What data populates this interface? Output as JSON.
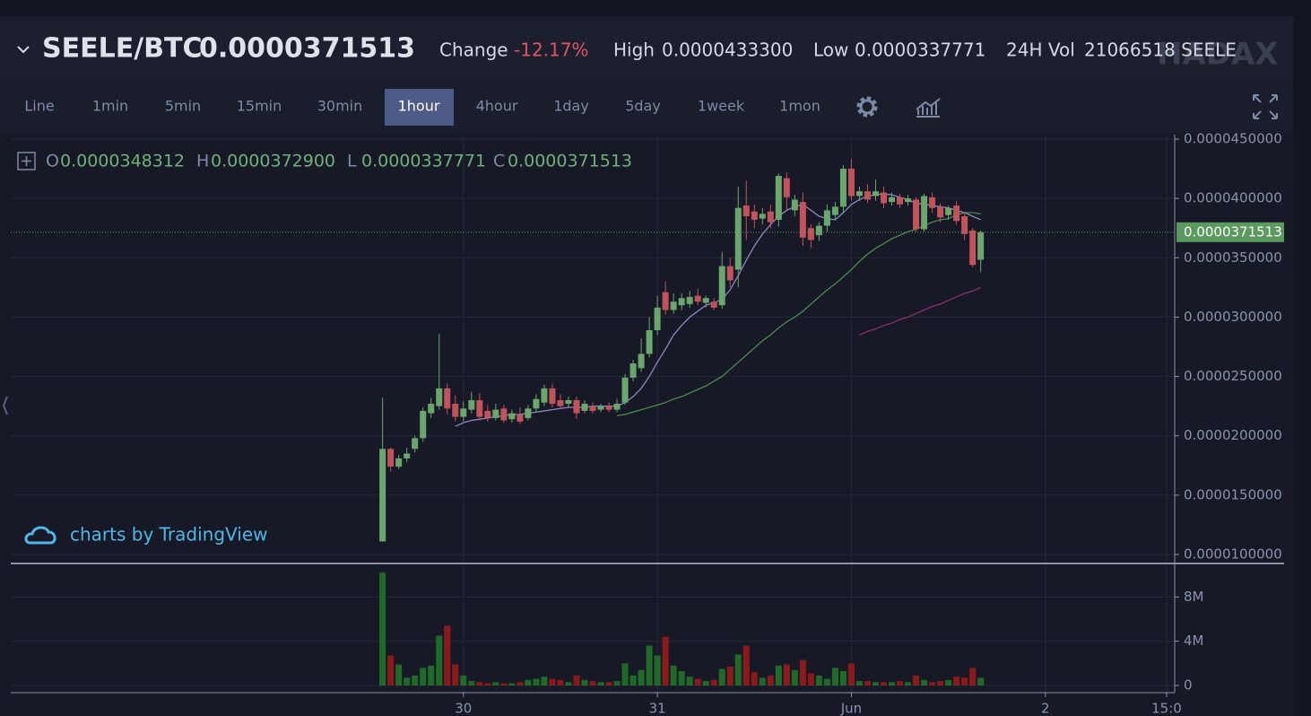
{
  "header": {
    "pair": "SEELE/BTC",
    "price": "0.0000371513",
    "stats": [
      {
        "label": "Change",
        "value": "-12.17%"
      },
      {
        "label": "High",
        "value": "0.0000433300"
      },
      {
        "label": "Low",
        "value": "0.0000337771"
      },
      {
        "label": "24H Vol",
        "value": "21066518 SEELE"
      }
    ],
    "watermark": "HADAX"
  },
  "toolbar": {
    "intervals": [
      "Line",
      "1min",
      "5min",
      "15min",
      "30min",
      "1hour",
      "4hour",
      "1day",
      "5day",
      "1week",
      "1mon"
    ],
    "active": "1hour"
  },
  "legend": {
    "items": [
      {
        "key": "O",
        "value": "0.0000348312"
      },
      {
        "key": "H",
        "value": "0.0000372900"
      },
      {
        "key": "L",
        "value": "0.0000337771"
      },
      {
        "key": "C",
        "value": "0.0000371513"
      }
    ]
  },
  "attribution": "charts by TradingView",
  "chart_data": {
    "type": "candlestick",
    "open": [
      1.11e-05,
      1.89e-05,
      1.74e-05,
      1.81e-05,
      1.89e-05,
      1.98e-05,
      2.19e-05,
      2.25e-05,
      2.4e-05,
      2.27e-05,
      2.16e-05,
      2.22e-05,
      2.3e-05,
      2.21e-05,
      2.15e-05,
      2.23e-05,
      2.14e-05,
      2.18e-05,
      2.15e-05,
      2.23e-05,
      2.28e-05,
      2.4e-05,
      2.3e-05,
      2.27e-05,
      2.3e-05,
      2.21e-05,
      2.25e-05,
      2.22e-05,
      2.25e-05,
      2.22e-05,
      2.28e-05,
      2.49e-05,
      2.57e-05,
      2.69e-05,
      2.89e-05,
      3.21e-05,
      3.06e-05,
      3.1e-05,
      3.11e-05,
      3.18e-05,
      3.12e-05,
      3.13e-05,
      3.1e-05,
      3.43e-05,
      3.4e-05,
      3.94e-05,
      3.89e-05,
      3.83e-05,
      3.89e-05,
      3.82e-05,
      4.17e-05,
      3.9e-05,
      3.97e-05,
      3.75e-05,
      3.69e-05,
      3.77e-05,
      3.86e-05,
      3.93e-05,
      4.25e-05,
      4.02e-05,
      4.06e-05,
      4.02e-05,
      4.05e-05,
      3.97e-05,
      4.01e-05,
      3.97e-05,
      3.99e-05,
      3.74e-05,
      4.01e-05,
      3.93e-05,
      3.86e-05,
      3.94e-05,
      3.85e-05,
      3.73e-05,
      3.48312e-05
    ],
    "high": [
      2.32e-05,
      1.9e-05,
      1.84e-05,
      1.9e-05,
      2e-05,
      2.24e-05,
      2.32e-05,
      2.86e-05,
      2.44e-05,
      2.34e-05,
      2.29e-05,
      2.37e-05,
      2.36e-05,
      2.26e-05,
      2.27e-05,
      2.26e-05,
      2.22e-05,
      2.24e-05,
      2.26e-05,
      2.35e-05,
      2.43e-05,
      2.44e-05,
      2.35e-05,
      2.33e-05,
      2.33e-05,
      2.3e-05,
      2.28e-05,
      2.27e-05,
      2.28e-05,
      2.31e-05,
      2.52e-05,
      2.64e-05,
      2.82e-05,
      3e-05,
      3.18e-05,
      3.3e-05,
      3.2e-05,
      3.2e-05,
      3.22e-05,
      3.24e-05,
      3.18e-05,
      3.16e-05,
      3.55e-05,
      3.5e-05,
      4.1e-05,
      4.15e-05,
      3.95e-05,
      3.92e-05,
      3.95e-05,
      4.21e-05,
      4.22e-05,
      4.03e-05,
      4.05e-05,
      3.78e-05,
      3.8e-05,
      3.95e-05,
      3.97e-05,
      4.28e-05,
      4.333e-05,
      4.1e-05,
      4.12e-05,
      4.16e-05,
      4.1e-05,
      4.05e-05,
      4.04e-05,
      4.03e-05,
      4.01e-05,
      4.04e-05,
      4.05e-05,
      3.96e-05,
      3.94e-05,
      3.98e-05,
      3.88e-05,
      3.75e-05,
      3.729e-05
    ],
    "low": [
      1.11e-05,
      1.7e-05,
      1.72e-05,
      1.78e-05,
      1.86e-05,
      1.95e-05,
      2.15e-05,
      2.22e-05,
      2.18e-05,
      2.12e-05,
      2.12e-05,
      2.19e-05,
      2.13e-05,
      2.12e-05,
      2.13e-05,
      2.11e-05,
      2.11e-05,
      2.1e-05,
      2.13e-05,
      2.2e-05,
      2.25e-05,
      2.24e-05,
      2.23e-05,
      2.24e-05,
      2.14e-05,
      2.19e-05,
      2.19e-05,
      2.2e-05,
      2.2e-05,
      2.2e-05,
      2.26e-05,
      2.46e-05,
      2.54e-05,
      2.66e-05,
      2.85e-05,
      3.02e-05,
      3.03e-05,
      3.06e-05,
      3.08e-05,
      3.1e-05,
      3.08e-05,
      3.06e-05,
      3.07e-05,
      3.25e-05,
      3.25e-05,
      3.65e-05,
      3.75e-05,
      3.78e-05,
      3.75e-05,
      3.76e-05,
      3.9e-05,
      3.85e-05,
      3.6e-05,
      3.58e-05,
      3.64e-05,
      3.72e-05,
      3.82e-05,
      3.88e-05,
      3.98e-05,
      3.98e-05,
      3.96e-05,
      3.98e-05,
      3.92e-05,
      3.94e-05,
      3.92e-05,
      3.94e-05,
      3.72e-05,
      3.72e-05,
      3.88e-05,
      3.8e-05,
      3.82e-05,
      3.78e-05,
      3.65e-05,
      3.42e-05,
      3.37771e-05
    ],
    "close": [
      1.89e-05,
      1.74e-05,
      1.81e-05,
      1.85e-05,
      1.98e-05,
      2.21e-05,
      2.27e-05,
      2.4e-05,
      2.23e-05,
      2.16e-05,
      2.23e-05,
      2.3e-05,
      2.16e-05,
      2.15e-05,
      2.22e-05,
      2.13e-05,
      2.19e-05,
      2.12e-05,
      2.23e-05,
      2.31e-05,
      2.4e-05,
      2.27e-05,
      2.25e-05,
      2.3e-05,
      2.19e-05,
      2.27e-05,
      2.21e-05,
      2.25e-05,
      2.22e-05,
      2.27e-05,
      2.49e-05,
      2.61e-05,
      2.69e-05,
      2.89e-05,
      3.08e-05,
      3.06e-05,
      3.13e-05,
      3.16e-05,
      3.17e-05,
      3.13e-05,
      3.16e-05,
      3.08e-05,
      3.43e-05,
      3.31e-05,
      3.92e-05,
      3.85e-05,
      3.82e-05,
      3.87e-05,
      3.8e-05,
      4.19e-05,
      4.01e-05,
      3.99e-05,
      3.67e-05,
      3.65e-05,
      3.77e-05,
      3.9e-05,
      3.93e-05,
      4.25e-05,
      4.02e-05,
      4.06e-05,
      3.99e-05,
      4.06e-05,
      3.96e-05,
      4.01e-05,
      3.95e-05,
      4e-05,
      3.74e-05,
      4.02e-05,
      3.92e-05,
      3.84e-05,
      3.92e-05,
      3.81e-05,
      3.7e-05,
      3.44e-05,
      3.71513e-05
    ],
    "volume": [
      10200000,
      2700000,
      1900000,
      700000,
      900000,
      1600000,
      1800000,
      4500000,
      5400000,
      1900000,
      900000,
      400000,
      300000,
      200000,
      300000,
      200000,
      200000,
      300000,
      500000,
      600000,
      800000,
      600000,
      500000,
      300000,
      900000,
      500000,
      400000,
      300000,
      300000,
      400000,
      2000000,
      900000,
      1400000,
      3600000,
      2700000,
      4400000,
      1800000,
      1300000,
      800000,
      600000,
      400000,
      500000,
      1500000,
      1700000,
      2800000,
      3600000,
      1200000,
      700000,
      900000,
      1800000,
      1900000,
      1400000,
      2300000,
      1100000,
      900000,
      600000,
      1600000,
      1300000,
      2000000,
      400000,
      400000,
      300000,
      300000,
      300000,
      400000,
      300000,
      900000,
      500000,
      300000,
      400000,
      500000,
      800000,
      700000,
      1600000,
      700000
    ],
    "ma_lines": [
      {
        "color": "#8b86c4",
        "values": [
          null,
          null,
          null,
          null,
          null,
          null,
          null,
          null,
          null,
          2.08e-05,
          2.11e-05,
          2.13e-05,
          2.14e-05,
          2.15e-05,
          2.16e-05,
          2.17e-05,
          2.18e-05,
          2.18e-05,
          2.19e-05,
          2.2e-05,
          2.21e-05,
          2.22e-05,
          2.23e-05,
          2.24e-05,
          2.24e-05,
          2.24e-05,
          2.25e-05,
          2.25e-05,
          2.25e-05,
          2.25e-05,
          2.28e-05,
          2.33e-05,
          2.4e-05,
          2.5e-05,
          2.62e-05,
          2.73e-05,
          2.85e-05,
          2.93e-05,
          3e-05,
          3.05e-05,
          3.1e-05,
          3.12e-05,
          3.15e-05,
          3.23e-05,
          3.35e-05,
          3.48e-05,
          3.6e-05,
          3.7e-05,
          3.78e-05,
          3.85e-05,
          3.9e-05,
          3.93e-05,
          3.95e-05,
          3.9e-05,
          3.85e-05,
          3.83e-05,
          3.82e-05,
          3.88e-05,
          3.95e-05,
          3.99e-05,
          4.02e-05,
          4.03e-05,
          4.04e-05,
          4.03e-05,
          4.01e-05,
          3.99e-05,
          3.96e-05,
          3.95e-05,
          3.94e-05,
          3.93e-05,
          3.92e-05,
          3.9e-05,
          3.88e-05,
          3.85e-05,
          3.82e-05
        ]
      },
      {
        "color": "#4e8a4f",
        "values": [
          null,
          null,
          null,
          null,
          null,
          null,
          null,
          null,
          null,
          null,
          null,
          null,
          null,
          null,
          null,
          null,
          null,
          null,
          null,
          null,
          null,
          null,
          null,
          null,
          null,
          null,
          null,
          null,
          null,
          2.17e-05,
          2.18e-05,
          2.2e-05,
          2.22e-05,
          2.24e-05,
          2.26e-05,
          2.28e-05,
          2.31e-05,
          2.33e-05,
          2.36e-05,
          2.39e-05,
          2.42e-05,
          2.46e-05,
          2.5e-05,
          2.56e-05,
          2.62e-05,
          2.68e-05,
          2.74e-05,
          2.8e-05,
          2.85e-05,
          2.91e-05,
          2.96e-05,
          3e-05,
          3.05e-05,
          3.11e-05,
          3.17e-05,
          3.23e-05,
          3.28e-05,
          3.34e-05,
          3.4e-05,
          3.47e-05,
          3.53e-05,
          3.58e-05,
          3.62e-05,
          3.66e-05,
          3.69e-05,
          3.72e-05,
          3.74e-05,
          3.77e-05,
          3.8e-05,
          3.82e-05,
          3.83e-05,
          3.86e-05,
          3.88e-05,
          3.88e-05,
          3.87e-05
        ]
      },
      {
        "color": "#8c2f6b",
        "values": [
          null,
          null,
          null,
          null,
          null,
          null,
          null,
          null,
          null,
          null,
          null,
          null,
          null,
          null,
          null,
          null,
          null,
          null,
          null,
          null,
          null,
          null,
          null,
          null,
          null,
          null,
          null,
          null,
          null,
          null,
          null,
          null,
          null,
          null,
          null,
          null,
          null,
          null,
          null,
          null,
          null,
          null,
          null,
          null,
          null,
          null,
          null,
          null,
          null,
          null,
          null,
          null,
          null,
          null,
          null,
          null,
          null,
          null,
          null,
          2.85e-05,
          2.88e-05,
          2.9e-05,
          2.93e-05,
          2.95e-05,
          2.98e-05,
          3e-05,
          3.03e-05,
          3.06e-05,
          3.09e-05,
          3.11e-05,
          3.14e-05,
          3.17e-05,
          3.2e-05,
          3.22e-05,
          3.25e-05
        ]
      }
    ],
    "up_color": "#6aa66e",
    "down_color": "#c2535c",
    "up_volume_color": "#1f6a28",
    "down_volume_color": "#8b1a1c",
    "ylim": [
      1e-05,
      4.5e-05
    ],
    "yticks": [
      {
        "value": 1e-05,
        "label": "0.0000100000"
      },
      {
        "value": 1.5e-05,
        "label": "0.0000150000"
      },
      {
        "value": 2e-05,
        "label": "0.0000200000"
      },
      {
        "value": 2.5e-05,
        "label": "0.0000250000"
      },
      {
        "value": 3e-05,
        "label": "0.0000300000"
      },
      {
        "value": 3.5e-05,
        "label": "0.0000350000"
      },
      {
        "value": 4e-05,
        "label": "0.0000400000"
      },
      {
        "value": 4.5e-05,
        "label": "0.0000450000"
      }
    ],
    "volume_ylim": [
      0,
      10300000
    ],
    "volume_ticks": [
      0,
      {
        "value": 4000000,
        "label": "4M"
      },
      {
        "value": 8000000,
        "label": "8M"
      }
    ],
    "xlim": [
      -46,
      98
    ],
    "xticks": [
      {
        "value": 10,
        "label": "30"
      },
      {
        "value": 34,
        "label": "31"
      },
      {
        "value": 58,
        "label": "Jun"
      },
      {
        "value": 82,
        "label": "2"
      },
      {
        "value": 97,
        "label": "15:0"
      }
    ],
    "grid": true
  }
}
